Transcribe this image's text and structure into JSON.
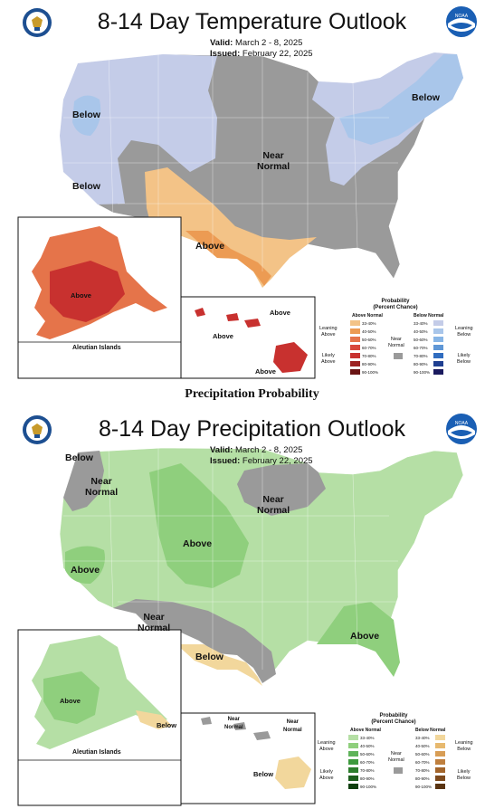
{
  "temperature": {
    "title": "8-14 Day Temperature Outlook",
    "valid_label": "Valid:",
    "valid_value": "March 2 - 8, 2025",
    "issued_label": "Issued:",
    "issued_value": "February 22, 2025",
    "labels": {
      "below_northwest": "Below",
      "below_california": "Below",
      "below_northeast": "Below",
      "near_normal": "Near\nNormal",
      "above_south": "Above",
      "above_alaska": "Above",
      "above_hawaii_1": "Above",
      "above_hawaii_2": "Above",
      "above_hawaii_3": "Above"
    },
    "inset_caption": "Aleutian Islands",
    "legend": {
      "title": "Probability\n(Percent Chance)",
      "left_header": "Above Normal",
      "right_header": "Below Normal",
      "near_label": "Near\nNormal",
      "leaning_left": "Leaning\nAbove",
      "likely_left": "Likely\nAbove",
      "leaning_right": "Leaning\nBelow",
      "likely_right": "Likely\nBelow",
      "ranges": [
        "33-40%",
        "40-50%",
        "50-60%",
        "60-70%",
        "70-80%",
        "80-90%",
        "90-100%"
      ],
      "left_colors": [
        "#f3c387",
        "#ec9b53",
        "#e5744a",
        "#d8473b",
        "#c8312f",
        "#9c2222",
        "#6a1414"
      ],
      "right_colors": [
        "#c4cce8",
        "#a9c6ea",
        "#87b5e6",
        "#5f97d6",
        "#2f6cbf",
        "#1f3f91",
        "#1a1a5e"
      ]
    }
  },
  "between_title": "Precipitation Probability",
  "precipitation": {
    "title": "8-14 Day Precipitation Outlook",
    "valid_label": "Valid:",
    "valid_value": "March 2 - 8, 2025",
    "issued_label": "Issued:",
    "issued_value": "February 22, 2025",
    "labels": {
      "below_northwest": "Below",
      "near_normal_northwest": "Near\nNormal",
      "near_normal_midwest": "Near\nNormal",
      "above_rockies": "Above",
      "above_california": "Above",
      "near_normal_southwest": "Near\nNormal",
      "below_texas": "Below",
      "above_southeast": "Above",
      "above_alaska": "Above",
      "below_alaska": "Below",
      "near_normal_hawaii_1": "Near\nNormal",
      "near_normal_hawaii_2": "Near\nNormal",
      "below_hawaii": "Below"
    },
    "inset_caption": "Aleutian Islands",
    "legend": {
      "title": "Probability\n(Percent Chance)",
      "left_header": "Above Normal",
      "right_header": "Below Normal",
      "near_label": "Near\nNormal",
      "leaning_left": "Leaning\nAbove",
      "likely_left": "Likely\nAbove",
      "leaning_right": "Leaning\nBelow",
      "likely_right": "Likely\nBelow",
      "ranges": [
        "33-40%",
        "40-50%",
        "50-60%",
        "60-70%",
        "70-80%",
        "80-90%",
        "90-100%"
      ],
      "left_colors": [
        "#b5dfa5",
        "#8fcf7d",
        "#5fb35a",
        "#3e9a3e",
        "#2c7d2c",
        "#1c5e1c",
        "#0f3f0f"
      ],
      "right_colors": [
        "#f2d79c",
        "#e7b96f",
        "#d89d55",
        "#bf7f3e",
        "#a3652b",
        "#7e4a1d",
        "#5a3412"
      ]
    }
  },
  "colors": {
    "near_normal_gray": "#9a9a9a",
    "temp_below_light": "#c4cce8",
    "temp_below_mid": "#a9c6ea",
    "temp_above_light": "#f3c387",
    "temp_above_mid": "#ec9b53",
    "precip_above_light": "#b5dfa5",
    "precip_above_mid": "#8fcf7d",
    "precip_below_light": "#f2d79c"
  },
  "icons": {
    "left_logo": "doc-seal-icon",
    "right_logo": "noaa-logo-icon"
  }
}
